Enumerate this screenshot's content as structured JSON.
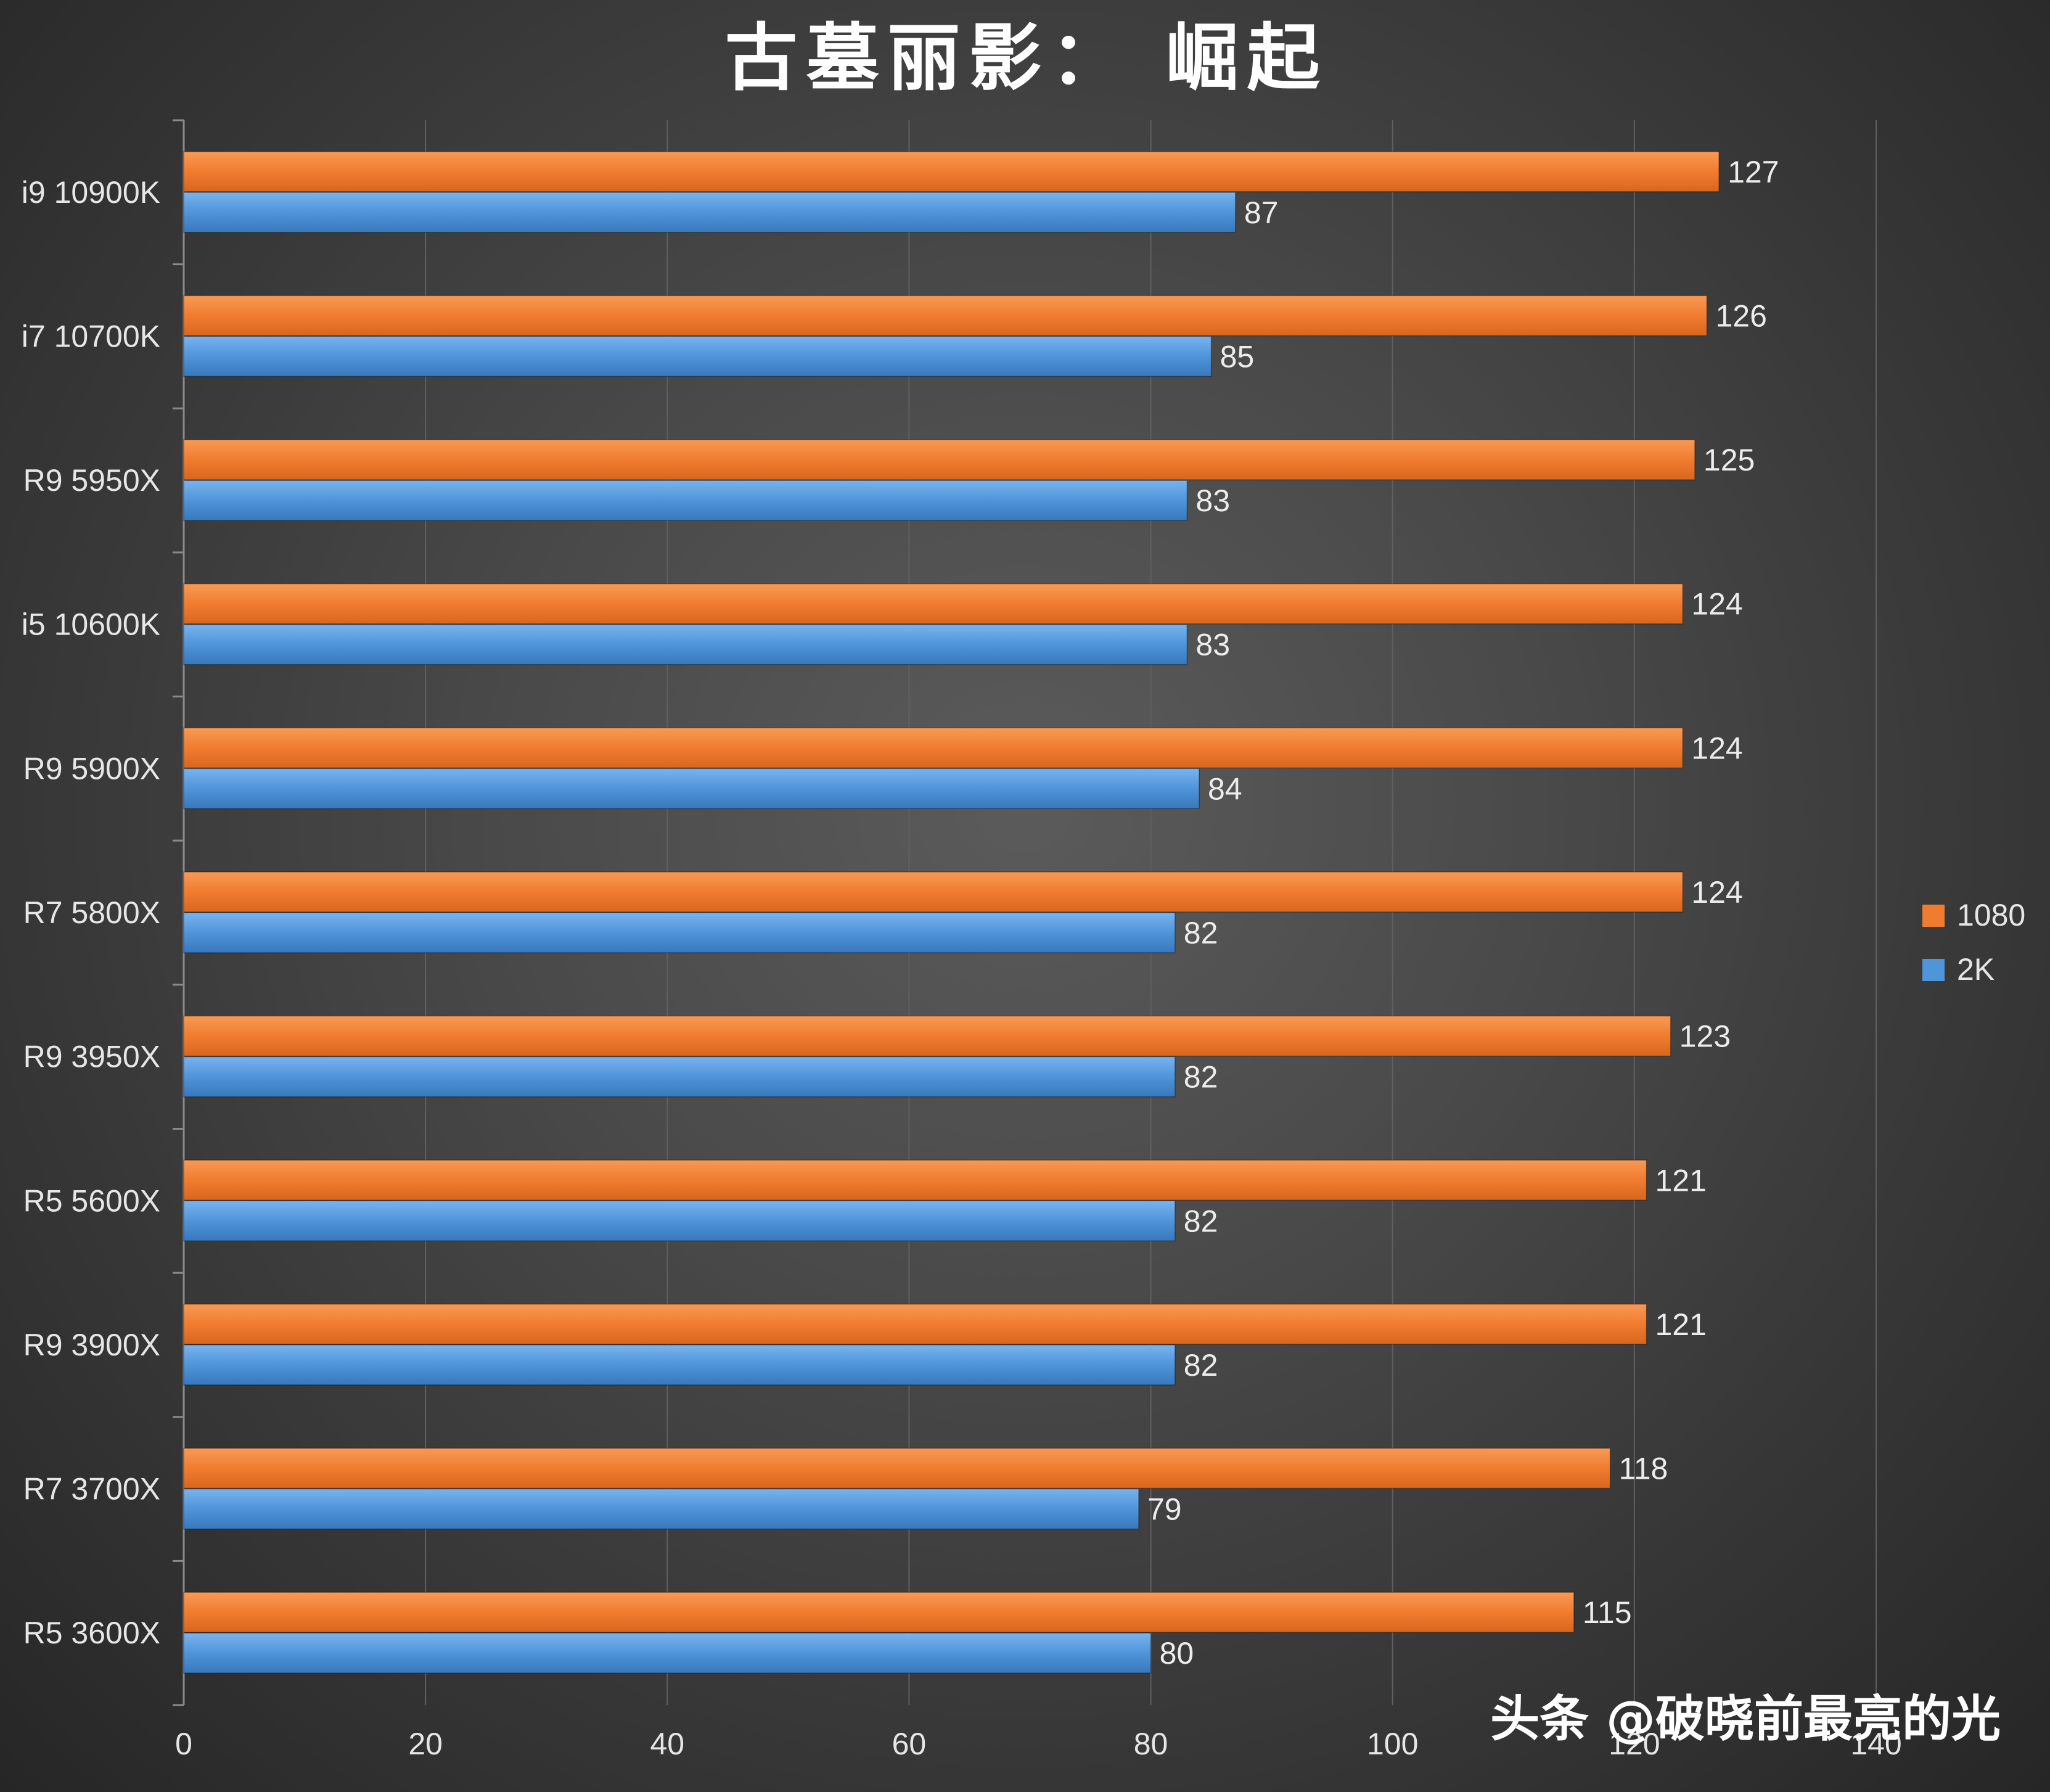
{
  "chart_data": {
    "type": "bar",
    "orientation": "horizontal",
    "title": "古墓丽影： 崛起",
    "categories": [
      "i9 10900K",
      "i7 10700K",
      "R9 5950X",
      "i5 10600K",
      "R9 5900X",
      "R7 5800X",
      "R9 3950X",
      "R5 5600X",
      "R9 3900X",
      "R7 3700X",
      "R5 3600X"
    ],
    "series": [
      {
        "name": "1080",
        "color": "#f07c30",
        "values": [
          127,
          126,
          125,
          124,
          124,
          124,
          123,
          121,
          121,
          118,
          115
        ]
      },
      {
        "name": "2K",
        "color": "#4f95d9",
        "values": [
          87,
          85,
          83,
          83,
          84,
          82,
          82,
          82,
          82,
          79,
          80
        ]
      }
    ],
    "xlim": [
      0,
      140
    ],
    "x_ticks": [
      "0",
      "20",
      "40",
      "60",
      "80",
      "100",
      "120",
      "140"
    ],
    "grid": "vertical",
    "legend_position": "right",
    "data_labels": true
  },
  "watermark": {
    "text": "头条 @破晓前最亮的光"
  }
}
